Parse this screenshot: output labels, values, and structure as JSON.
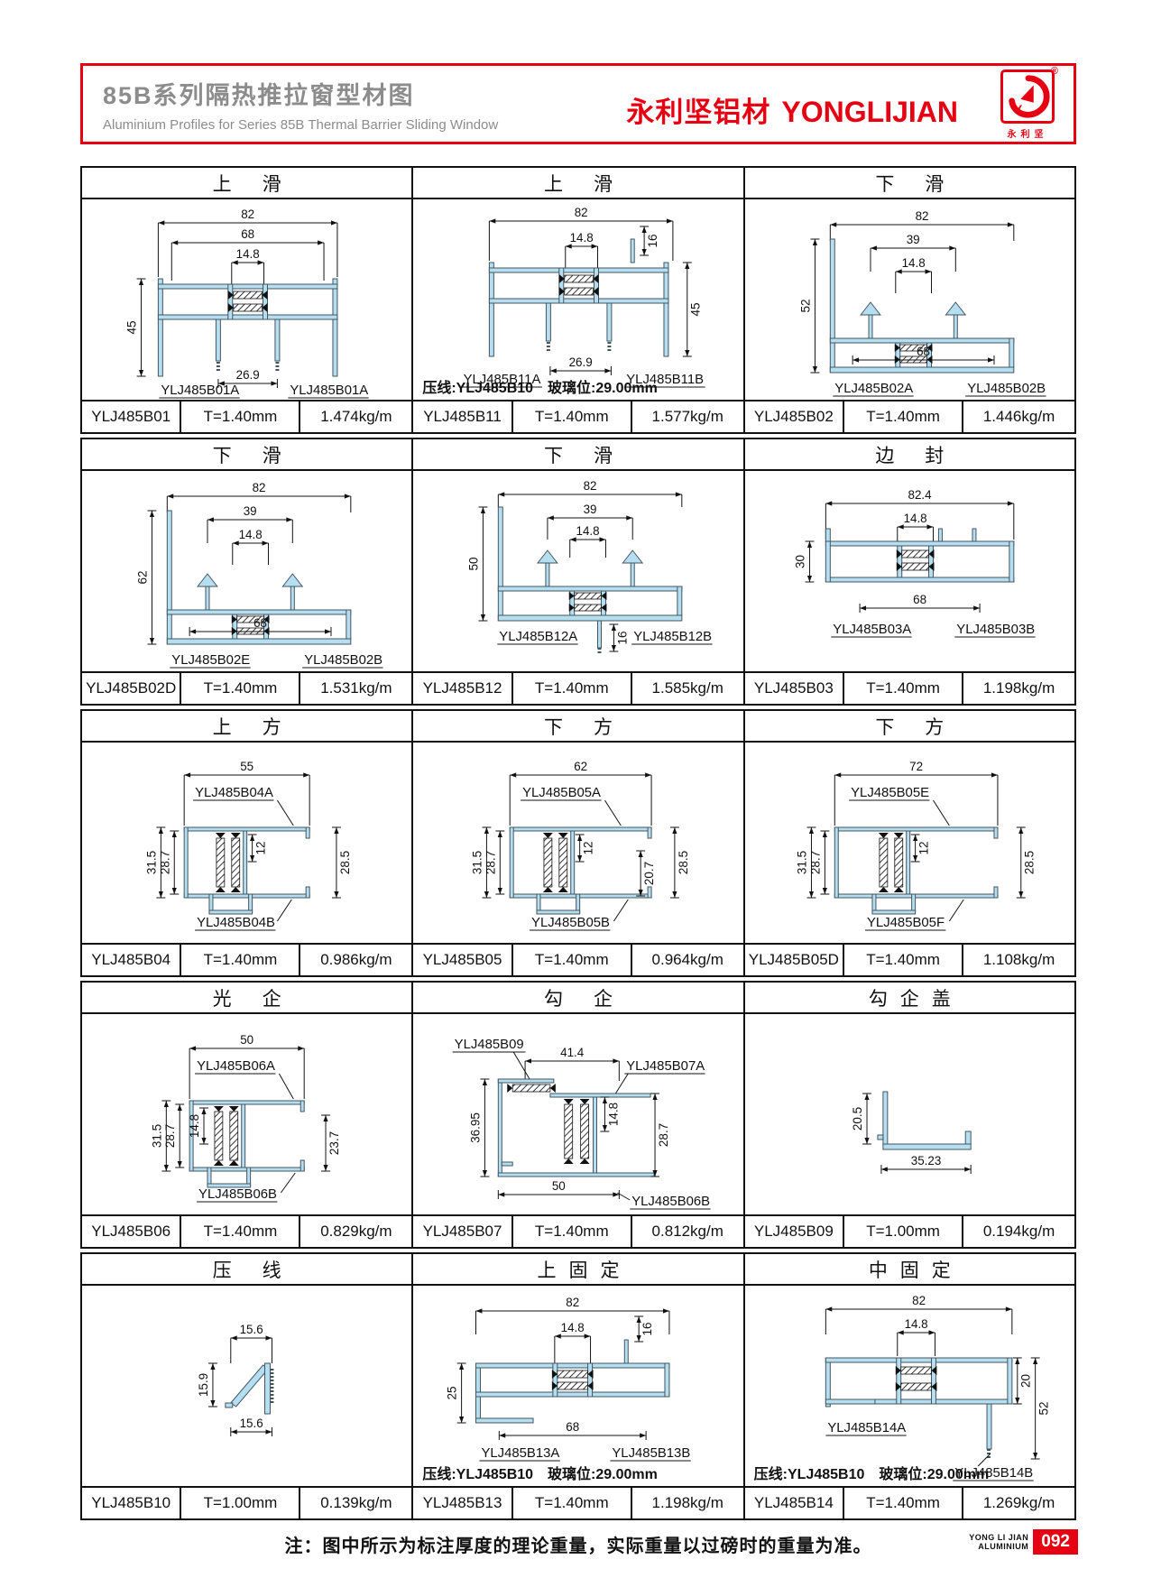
{
  "header": {
    "title_cn": "85B系列隔热推拉窗型材图",
    "title_en": "Aluminium Profiles for Series 85B Thermal Barrier Sliding Window",
    "brand_cn": "永利坚铝材",
    "brand_en": "YONGLIJIAN",
    "logo_cn": "永利坚",
    "logo_reg": "®"
  },
  "colors": {
    "accent_red": "#e60012",
    "profile_fill": "#b5dff1",
    "profile_outline": "#44545e",
    "title_gray": "#8c8c8c"
  },
  "cells": [
    {
      "title": "上滑",
      "code": "YLJ485B01",
      "thickness": "T=1.40mm",
      "weight": "1.474kg/m",
      "dims": [
        "82",
        "68",
        "14.8",
        "45",
        "26.9"
      ],
      "part_labels": [
        "YLJ485B01A",
        "YLJ485B01A"
      ],
      "note": ""
    },
    {
      "title": "上滑",
      "code": "YLJ485B11",
      "thickness": "T=1.40mm",
      "weight": "1.577kg/m",
      "dims": [
        "82",
        "14.8",
        "16",
        "45",
        "26.9"
      ],
      "part_labels": [
        "YLJ485B11A",
        "YLJ485B11B"
      ],
      "note": "压线:YLJ485B10　玻璃位:29.00mm"
    },
    {
      "title": "下滑",
      "code": "YLJ485B02",
      "thickness": "T=1.40mm",
      "weight": "1.446kg/m",
      "dims": [
        "82",
        "39",
        "14.8",
        "52",
        "68"
      ],
      "part_labels": [
        "YLJ485B02A",
        "YLJ485B02B"
      ],
      "note": ""
    },
    {
      "title": "下滑",
      "code": "YLJ485B02D",
      "thickness": "T=1.40mm",
      "weight": "1.531kg/m",
      "dims": [
        "82",
        "39",
        "14.8",
        "62",
        "68"
      ],
      "part_labels": [
        "YLJ485B02E",
        "YLJ485B02B"
      ],
      "note": ""
    },
    {
      "title": "下滑",
      "code": "YLJ485B12",
      "thickness": "T=1.40mm",
      "weight": "1.585kg/m",
      "dims": [
        "82",
        "39",
        "14.8",
        "50",
        "16"
      ],
      "part_labels": [
        "YLJ485B12A",
        "YLJ485B12B"
      ],
      "note": ""
    },
    {
      "title": "边封",
      "code": "YLJ485B03",
      "thickness": "T=1.40mm",
      "weight": "1.198kg/m",
      "dims": [
        "82.4",
        "14.8",
        "30",
        "68"
      ],
      "part_labels": [
        "YLJ485B03A",
        "YLJ485B03B"
      ],
      "note": ""
    },
    {
      "title": "上方",
      "code": "YLJ485B04",
      "thickness": "T=1.40mm",
      "weight": "0.986kg/m",
      "dims": [
        "55",
        "31.5",
        "28.7",
        "12",
        "28.5"
      ],
      "part_labels": [
        "YLJ485B04A",
        "YLJ485B04B"
      ],
      "note": ""
    },
    {
      "title": "下方",
      "code": "YLJ485B05",
      "thickness": "T=1.40mm",
      "weight": "0.964kg/m",
      "dims": [
        "62",
        "31.5",
        "28.7",
        "12",
        "20.7",
        "28.5"
      ],
      "part_labels": [
        "YLJ485B05A",
        "YLJ485B05B"
      ],
      "note": ""
    },
    {
      "title": "下方",
      "code": "YLJ485B05D",
      "thickness": "T=1.40mm",
      "weight": "1.108kg/m",
      "dims": [
        "72",
        "31.5",
        "28.7",
        "12",
        "28.5"
      ],
      "part_labels": [
        "YLJ485B05E",
        "YLJ485B05F"
      ],
      "note": ""
    },
    {
      "title": "光企",
      "code": "YLJ485B06",
      "thickness": "T=1.40mm",
      "weight": "0.829kg/m",
      "dims": [
        "50",
        "31.5",
        "28.7",
        "14.8",
        "23.7"
      ],
      "part_labels": [
        "YLJ485B06A",
        "YLJ485B06B"
      ],
      "note": ""
    },
    {
      "title": "勾企",
      "code": "YLJ485B07",
      "thickness": "T=1.40mm",
      "weight": "0.812kg/m",
      "dims": [
        "41.4",
        "36.95",
        "14.8",
        "28.7",
        "50"
      ],
      "part_labels": [
        "YLJ485B09",
        "YLJ485B07A",
        "YLJ485B06B"
      ],
      "note": ""
    },
    {
      "title": "勾企盖",
      "code": "YLJ485B09",
      "thickness": "T=1.00mm",
      "weight": "0.194kg/m",
      "dims": [
        "20.5",
        "35.23"
      ],
      "part_labels": [],
      "note": ""
    },
    {
      "title": "压线",
      "code": "YLJ485B10",
      "thickness": "T=1.00mm",
      "weight": "0.139kg/m",
      "dims": [
        "15.6",
        "15.9",
        "15.6"
      ],
      "part_labels": [],
      "note": ""
    },
    {
      "title": "上固定",
      "code": "YLJ485B13",
      "thickness": "T=1.40mm",
      "weight": "1.198kg/m",
      "dims": [
        "82",
        "14.8",
        "16",
        "25",
        "68"
      ],
      "part_labels": [
        "YLJ485B13A",
        "YLJ485B13B"
      ],
      "note": "压线:YLJ485B10　玻璃位:29.00mm"
    },
    {
      "title": "中固定",
      "code": "YLJ485B14",
      "thickness": "T=1.40mm",
      "weight": "1.269kg/m",
      "dims": [
        "82",
        "14.8",
        "20",
        "52"
      ],
      "part_labels": [
        "YLJ485B14A",
        "YLJ485B14B"
      ],
      "note": "压线:YLJ485B10　玻璃位:29.00mm"
    }
  ],
  "footer": {
    "note": "注：图中所示为标注厚度的理论重量，实际重量以过磅时的重量为准。",
    "brand_small_1": "YONG LI JIAN",
    "brand_small_2": "ALUMINIUM",
    "page_no": "092"
  }
}
